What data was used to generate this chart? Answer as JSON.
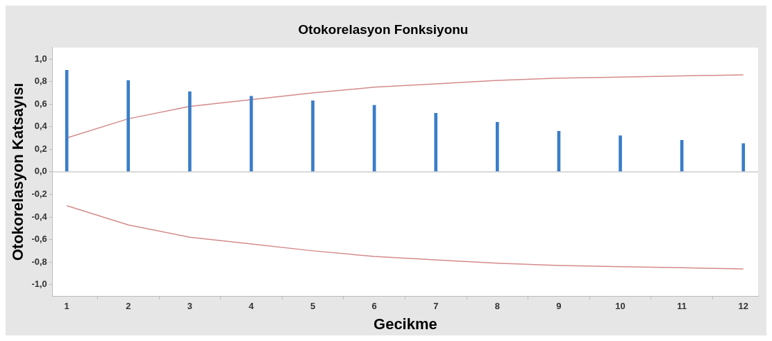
{
  "chart_data": {
    "type": "bar",
    "title": "Otokorelasyon Fonksiyonu",
    "xlabel": "Gecikme",
    "ylabel": "Otokorelasyon Katsayısı",
    "x": [
      1,
      2,
      3,
      4,
      5,
      6,
      7,
      8,
      9,
      10,
      11,
      12
    ],
    "series": [
      {
        "color": "#3a7dc9",
        "values": [
          0.9,
          0.81,
          0.71,
          0.67,
          0.63,
          0.59,
          0.52,
          0.44,
          0.36,
          0.32,
          0.28,
          0.25
        ]
      },
      {
        "type": "line",
        "color": "#d48a8a",
        "values": [
          0.3,
          0.47,
          0.58,
          0.64,
          0.7,
          0.75,
          0.78,
          0.81,
          0.83,
          0.84,
          0.85,
          0.86
        ]
      },
      {
        "type": "line",
        "color": "#d48a8a",
        "values": [
          -0.3,
          -0.47,
          -0.58,
          -0.64,
          -0.7,
          -0.75,
          -0.78,
          -0.81,
          -0.83,
          -0.84,
          -0.85,
          -0.86
        ]
      }
    ],
    "xlim": [
      0.77,
      12.24
    ],
    "xticks": [
      1,
      2,
      3,
      4,
      5,
      6,
      7,
      8,
      9,
      10,
      11,
      12
    ],
    "ylim": [
      -1.1,
      1.1
    ],
    "yticks": [
      {
        "value": -1,
        "label": "-1,0"
      },
      {
        "value": -0.8,
        "label": "-0,8"
      },
      {
        "value": -0.6,
        "label": "-0,6"
      },
      {
        "value": -0.4,
        "label": "-0,4"
      },
      {
        "value": -0.2,
        "label": "-0,2"
      },
      {
        "value": 0,
        "label": "0,0"
      },
      {
        "value": 0.2,
        "label": "0,2"
      },
      {
        "value": 0.4,
        "label": "0,4"
      },
      {
        "value": 0.6,
        "label": "0,6"
      },
      {
        "value": 0.8,
        "label": "0,8"
      },
      {
        "value": 1,
        "label": "1,0"
      }
    ],
    "ref_lines": [
      {
        "axis": "y",
        "value": 0,
        "color": "#cccccc"
      }
    ],
    "grid": false,
    "legend": false,
    "marker": "none",
    "line_style": "solid"
  }
}
